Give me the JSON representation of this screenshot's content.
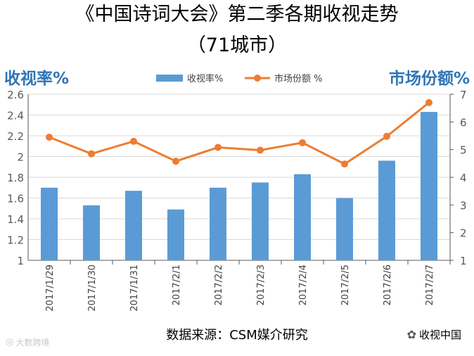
{
  "title_line1": "《中国诗词大会》第二季各期收视走势",
  "title_line2": "（71城市）",
  "source": "数据来源：CSM媒介研究",
  "watermark_right": "收视中国",
  "watermark_left": "大数跨境",
  "colors": {
    "bar": "#5B9BD5",
    "line": "#ED7D31",
    "axis_title": "#2E75B6"
  },
  "chart_data": {
    "type": "bar",
    "categories": [
      "2017/1/29",
      "2017/1/30",
      "2017/1/31",
      "2017/2/1",
      "2017/2/2",
      "2017/2/3",
      "2017/2/4",
      "2017/2/5",
      "2017/2/6",
      "2017/2/7"
    ],
    "series": [
      {
        "name": "收视率%",
        "type": "bar",
        "axis": "left",
        "values": [
          1.7,
          1.53,
          1.67,
          1.49,
          1.7,
          1.75,
          1.83,
          1.6,
          1.96,
          2.43
        ]
      },
      {
        "name": "市场份额 %",
        "type": "line",
        "axis": "right",
        "values": [
          5.45,
          4.85,
          5.3,
          4.58,
          5.08,
          4.98,
          5.25,
          4.48,
          5.48,
          6.7
        ]
      }
    ],
    "ylabel_left": "收视率%",
    "ylabel_right": "市场份额%",
    "ylim_left": [
      1,
      2.6
    ],
    "yticks_left": [
      "1",
      "1.2",
      "1.4",
      "1.6",
      "1.8",
      "2",
      "2.2",
      "2.4",
      "2.6"
    ],
    "ylim_right": [
      1,
      7
    ],
    "yticks_right": [
      "1",
      "2",
      "3",
      "4",
      "5",
      "6",
      "7"
    ],
    "legend_position": "top-center",
    "grid": true
  }
}
